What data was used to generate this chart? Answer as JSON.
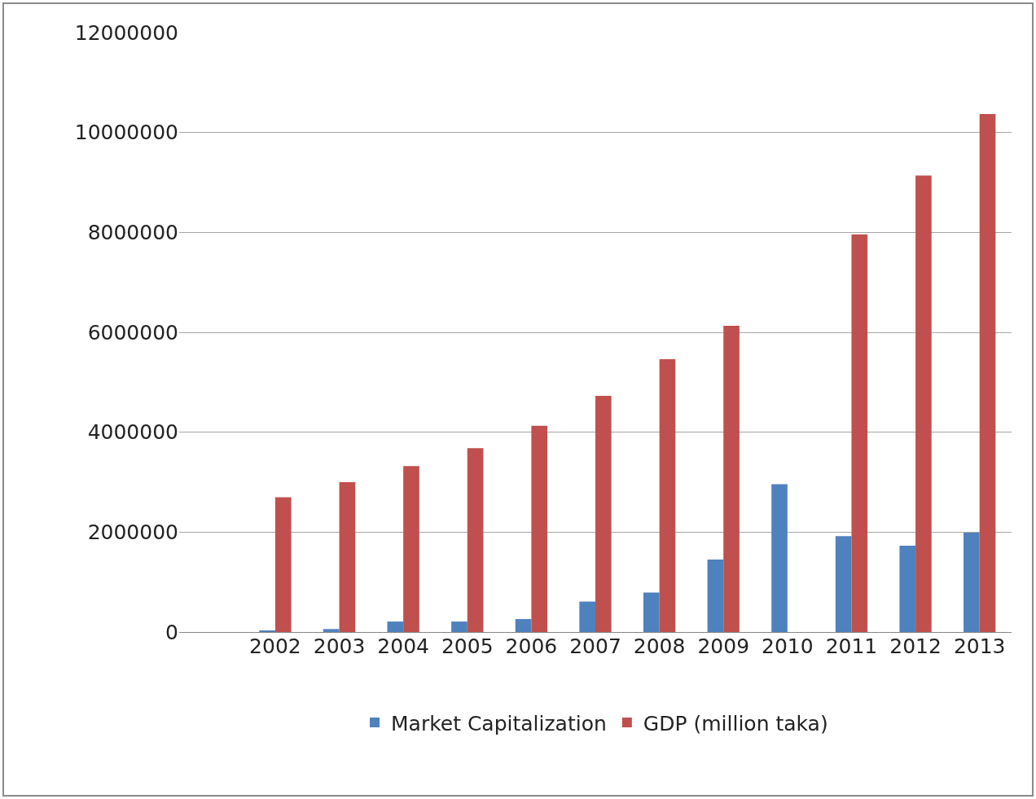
{
  "chart_data": {
    "type": "bar",
    "categories": [
      null,
      "2002",
      "2003",
      "2004",
      "2005",
      "2006",
      "2007",
      "2008",
      "2009",
      "2010",
      "2011",
      "2012",
      "2013"
    ],
    "series": [
      {
        "name": "Market Capitalization",
        "color": "#4f81bd",
        "values": [
          null,
          30000,
          60000,
          210000,
          210000,
          260000,
          610000,
          790000,
          1450000,
          2960000,
          1920000,
          1730000,
          1990000
        ]
      },
      {
        "name": "GDP (million taka)",
        "color": "#c0504d",
        "values": [
          null,
          2700000,
          3000000,
          3320000,
          3680000,
          4130000,
          4730000,
          5460000,
          6130000,
          null,
          7960000,
          9140000,
          10370000
        ]
      }
    ],
    "ylim": [
      0,
      12000000
    ],
    "yticks": [
      0,
      2000000,
      4000000,
      6000000,
      8000000,
      10000000,
      12000000
    ],
    "grid": "y",
    "legend": "bottom"
  }
}
